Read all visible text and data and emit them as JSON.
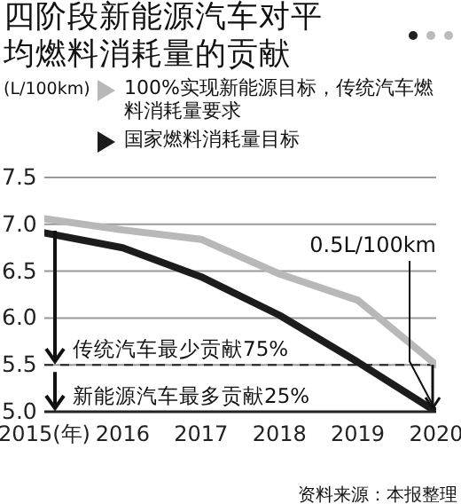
{
  "chart_data": {
    "type": "line",
    "title": "四阶段新能源汽车对平均燃料消耗量的贡献",
    "ylabel": "(L/100km)",
    "categories": [
      "2015(年)",
      "2016",
      "2017",
      "2018",
      "2019",
      "2020"
    ],
    "series": [
      {
        "name": "100%实现新能源目标，传统汽车燃料消耗量要求",
        "color": "#b8b8b8",
        "values": [
          7.06,
          6.94,
          6.84,
          6.47,
          6.19,
          5.5
        ]
      },
      {
        "name": "国家燃料消耗量目标",
        "color": "#1c1c1c",
        "values": [
          6.91,
          6.75,
          6.44,
          6.03,
          5.53,
          5.0
        ]
      }
    ],
    "ylim": [
      5.0,
      7.5
    ],
    "yticks": [
      {
        "value": 5.0,
        "label": "5.0"
      },
      {
        "value": 5.5,
        "label": "5.5"
      },
      {
        "value": 6.0,
        "label": "6.0"
      },
      {
        "value": 6.5,
        "label": "6.5"
      },
      {
        "value": 7.0,
        "label": "7.0"
      },
      {
        "value": 7.5,
        "label": "7.5"
      }
    ],
    "grid": "y",
    "legend": "top",
    "marker": "none",
    "line_style": "solid",
    "ref_lines": [
      {
        "axis": "y",
        "value": 5.5,
        "color": "#222222",
        "line_style": "dashed"
      }
    ],
    "annotations": [
      "传统汽车最少贡献75%",
      "新能源汽车最多贡献25%",
      {
        "text": "0.5L/100km",
        "x": "2020",
        "y": 5.0
      },
      "资料来源：本报整理"
    ]
  }
}
